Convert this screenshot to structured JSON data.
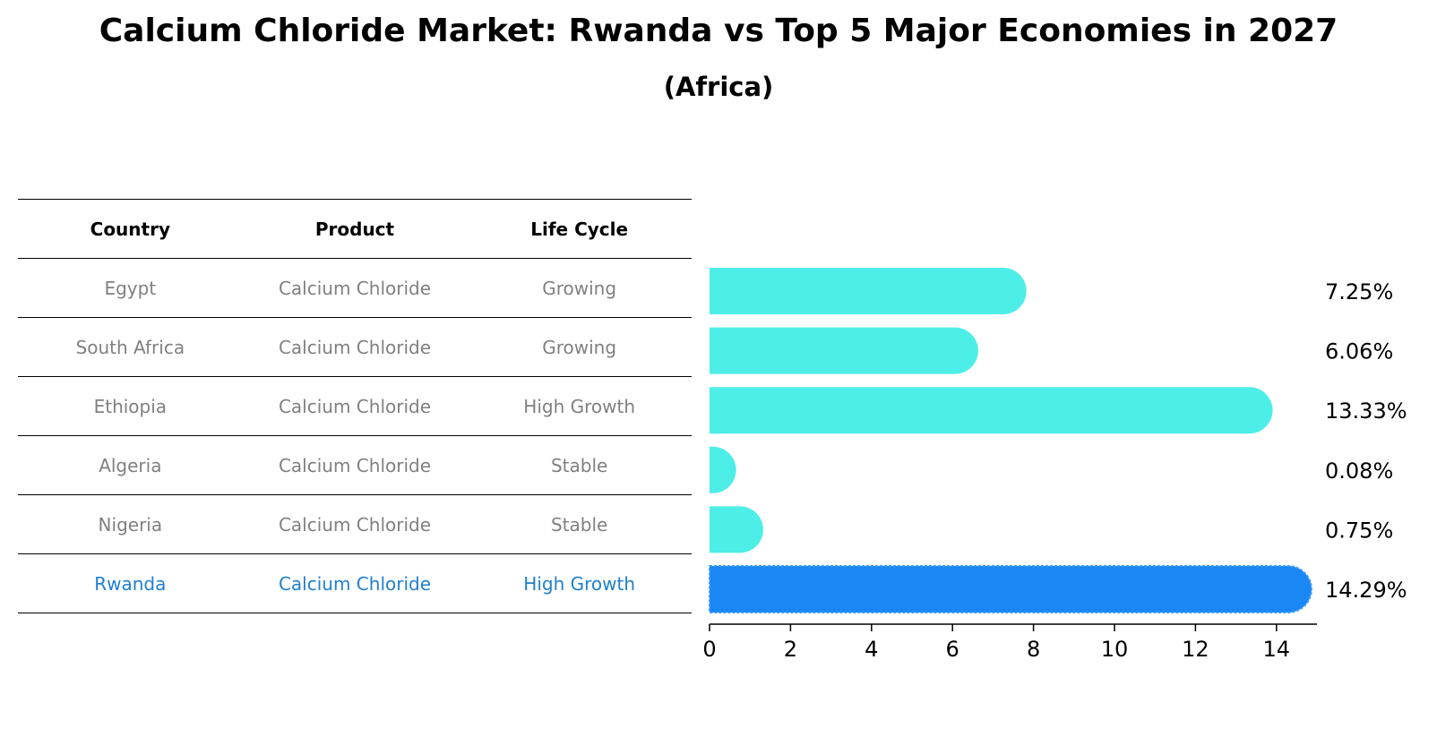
{
  "title": "Calcium Chloride Market: Rwanda vs Top 5 Major Economies in 2027",
  "subtitle": "(Africa)",
  "table": {
    "headers": [
      "Country",
      "Product",
      "Life Cycle"
    ],
    "rows": [
      [
        "Egypt",
        "Calcium Chloride",
        "Growing"
      ],
      [
        "South Africa",
        "Calcium Chloride",
        "Growing"
      ],
      [
        "Ethiopia",
        "Calcium Chloride",
        "High Growth"
      ],
      [
        "Algeria",
        "Calcium Chloride",
        "Stable"
      ],
      [
        "Nigeria",
        "Calcium Chloride",
        "Stable"
      ],
      [
        "Rwanda",
        "Calcium Chloride",
        "High Growth"
      ]
    ],
    "highlight_row": 5
  },
  "colors": {
    "bar": "#4deee8",
    "highlight_bar": "#1a87f5",
    "highlight_text": "#1f7fd0",
    "muted_text": "#808080"
  },
  "chart_data": {
    "type": "bar",
    "orientation": "horizontal",
    "categories": [
      "Egypt",
      "South Africa",
      "Ethiopia",
      "Algeria",
      "Nigeria",
      "Rwanda"
    ],
    "values": [
      7.25,
      6.06,
      13.33,
      0.08,
      0.75,
      14.29
    ],
    "value_labels": [
      "7.25%",
      "6.06%",
      "13.33%",
      "0.08%",
      "0.75%",
      "14.29%"
    ],
    "highlight_index": 5,
    "xlim": [
      0,
      15
    ],
    "xticks": [
      0,
      2,
      4,
      6,
      8,
      10,
      12,
      14
    ],
    "grid": false
  }
}
